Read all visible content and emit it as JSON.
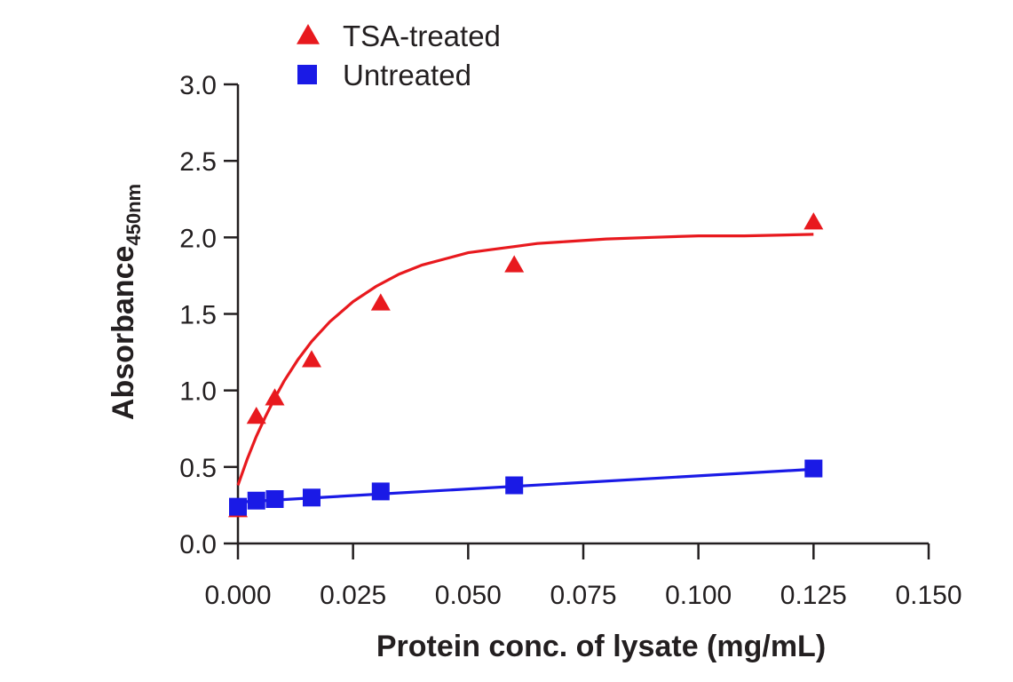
{
  "chart_data": {
    "type": "scatter",
    "title": "",
    "xlabel": "Protein conc. of lysate (mg/mL)",
    "ylabel": "Absorbance",
    "ylabel_subscript": "450nm",
    "xlim": [
      0,
      0.15
    ],
    "ylim": [
      0,
      3.0
    ],
    "x_ticks": [
      0,
      0.025,
      0.05,
      0.075,
      0.1,
      0.125,
      0.15
    ],
    "x_tick_labels": [
      "0.000",
      "0.025",
      "0.050",
      "0.075",
      "0.100",
      "0.125",
      "0.150"
    ],
    "y_ticks": [
      0,
      0.5,
      1.0,
      1.5,
      2.0,
      2.5,
      3.0
    ],
    "y_tick_labels": [
      "0.0",
      "0.5",
      "1.0",
      "1.5",
      "2.0",
      "2.5",
      "3.0"
    ],
    "grid": false,
    "legend_position": "top-left",
    "series": [
      {
        "name": "TSA-treated",
        "color": "#e8191e",
        "marker": "triangle",
        "x": [
          0,
          0.004,
          0.008,
          0.016,
          0.031,
          0.06,
          0.125
        ],
        "y": [
          0.22,
          0.83,
          0.95,
          1.2,
          1.57,
          1.82,
          2.1
        ],
        "fit": {
          "x": [
            0,
            0.002,
            0.004,
            0.006,
            0.008,
            0.01,
            0.013,
            0.016,
            0.02,
            0.025,
            0.03,
            0.035,
            0.04,
            0.045,
            0.05,
            0.055,
            0.06,
            0.065,
            0.07,
            0.08,
            0.09,
            0.1,
            0.11,
            0.125
          ],
          "y": [
            0.38,
            0.55,
            0.7,
            0.83,
            0.95,
            1.06,
            1.2,
            1.32,
            1.45,
            1.58,
            1.68,
            1.76,
            1.82,
            1.86,
            1.9,
            1.92,
            1.94,
            1.96,
            1.97,
            1.99,
            2.0,
            2.01,
            2.01,
            2.02
          ]
        }
      },
      {
        "name": "Untreated",
        "color": "#1a1ae6",
        "marker": "square",
        "x": [
          0,
          0.004,
          0.008,
          0.016,
          0.031,
          0.06,
          0.125
        ],
        "y": [
          0.24,
          0.28,
          0.29,
          0.3,
          0.34,
          0.38,
          0.49
        ],
        "fit": {
          "x": [
            0,
            0.125
          ],
          "y": [
            0.27,
            0.485
          ]
        }
      }
    ]
  }
}
